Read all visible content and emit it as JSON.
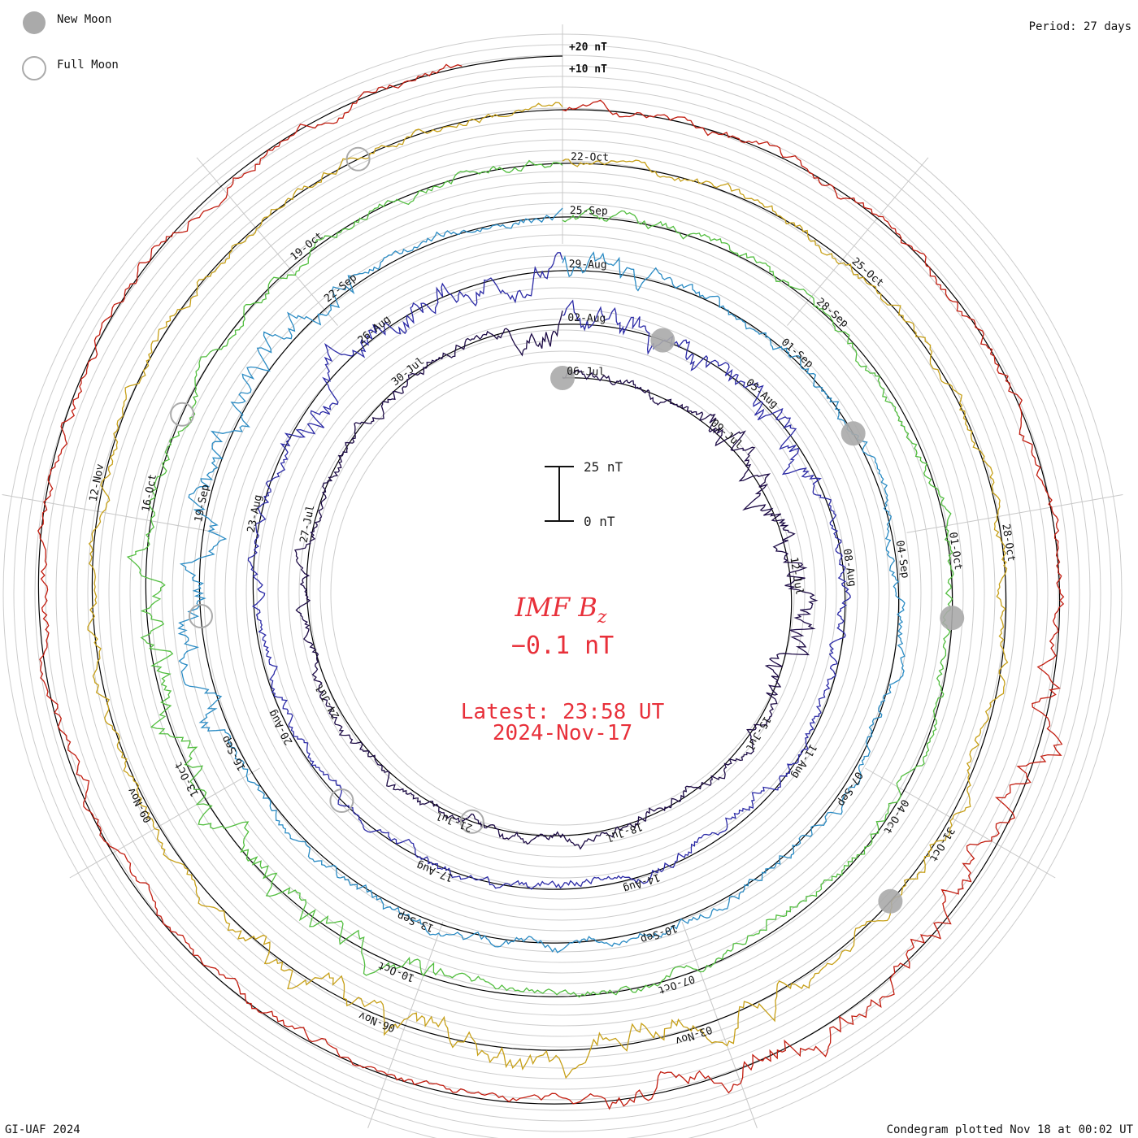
{
  "chart_data": {
    "type": "condegram",
    "title": "IMF B",
    "title_subscript": "z",
    "current_value": "−0.1 nT",
    "latest_time": "Latest: 23:58 UT",
    "latest_date": "2024-Nov-17",
    "period": "Period: 27 days",
    "credit": "GI-UAF 2024",
    "plotted": "Condegram plotted Nov 18 at 00:02 UT",
    "legend": [
      {
        "label": "New Moon",
        "style": "filled",
        "color": "#aaaaaa"
      },
      {
        "label": "Full Moon",
        "style": "open",
        "color": "#aaaaaa"
      }
    ],
    "scale_bar": {
      "top_label": "25 nT",
      "bottom_label": "0 nT"
    },
    "outer_ring_labels": [
      "+20 nT",
      "+10 nT"
    ],
    "rotations": [
      {
        "color": "#1c0a45",
        "labels": [
          "06-Jul",
          "09-Jul",
          "12-Jul",
          "15-Jul",
          "18-Jul",
          "21-Jul",
          "24-Jul",
          "27-Jul",
          "30-Jul"
        ]
      },
      {
        "color": "#2b2aa6",
        "labels": [
          "02-Aug",
          "05-Aug",
          "08-Aug",
          "11-Aug",
          "14-Aug",
          "17-Aug",
          "20-Aug",
          "23-Aug",
          "26-Aug"
        ]
      },
      {
        "color": "#2a8bc4",
        "labels": [
          "29-Aug",
          "01-Sep",
          "04-Sep",
          "07-Sep",
          "10-Sep",
          "13-Sep",
          "16-Sep",
          "19-Sep",
          "22-Sep"
        ]
      },
      {
        "color": "#52be3f",
        "labels": [
          "25-Sep",
          "28-Sep",
          "01-Oct",
          "04-Oct",
          "07-Oct",
          "10-Oct",
          "13-Oct",
          "16-Oct",
          "19-Oct"
        ]
      },
      {
        "color": "#c7a018",
        "labels": [
          "22-Oct",
          "25-Oct",
          "28-Oct",
          "31-Oct",
          "03-Nov",
          "06-Nov",
          "09-Nov",
          "12-Nov"
        ]
      },
      {
        "color": "#c21d10",
        "labels": []
      }
    ],
    "new_moons": [
      "06-Jul",
      "04-Aug",
      "03-Sep",
      "02-Oct",
      "01-Nov"
    ],
    "full_moons": [
      "21-Jul",
      "19-Aug",
      "18-Sep",
      "17-Oct",
      "15-Nov"
    ]
  }
}
